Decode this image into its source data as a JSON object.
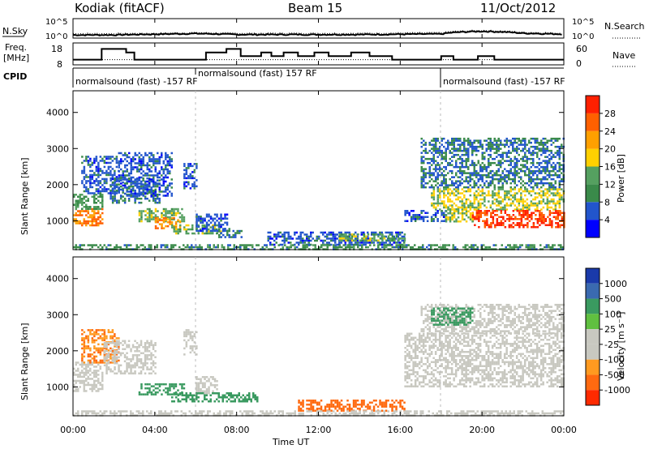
{
  "header": {
    "station": "Kodiak (fitACF)",
    "beam": "Beam 15",
    "date": "11/Oct/2012"
  },
  "noise_panel": {
    "left_label": "N.Sky",
    "right_label": "N.Search",
    "left_ticks": [
      "10^5",
      "10^0"
    ],
    "right_ticks": [
      "10^5",
      "10^0"
    ]
  },
  "freq_panel": {
    "left_label_1": "Freq.",
    "left_label_2": "[MHz]",
    "right_label": "Nave",
    "left_ticks": [
      "18",
      "8"
    ],
    "right_ticks": [
      "60",
      "0"
    ]
  },
  "cpid_panel": {
    "label": "CPID",
    "segments": [
      {
        "start_hour": 0,
        "text": "normalsound (fast) -157 RF"
      },
      {
        "start_hour": 6,
        "text": "normalsound (fast) 157 RF"
      },
      {
        "start_hour": 18,
        "text": "normalsound (fast) -157 RF"
      }
    ]
  },
  "x_axis": {
    "label": "Time UT",
    "ticks": [
      "00:00",
      "04:00",
      "08:00",
      "12:00",
      "16:00",
      "20:00",
      "00:00"
    ]
  },
  "power_panel": {
    "ylabel": "Slant Range [km]",
    "yticks": [
      "1000",
      "2000",
      "3000",
      "4000"
    ],
    "colorbar_label": "Power [dB]",
    "colorbar_ticks": [
      "4",
      "8",
      "12",
      "16",
      "20",
      "24",
      "28"
    ],
    "colors": [
      "#0000ff",
      "#2255cc",
      "#3a8a4a",
      "#55a060",
      "#ffd000",
      "#ffa000",
      "#ff6000",
      "#ff2000"
    ]
  },
  "velocity_panel": {
    "ylabel": "Slant Range [km]",
    "yticks": [
      "1000",
      "2000",
      "3000",
      "4000"
    ],
    "colorbar_label": "Velocity [m s⁻¹]",
    "colorbar_ticks": [
      "1000",
      "500",
      "100",
      "25",
      "-25",
      "-100",
      "-500",
      "-1000"
    ],
    "colors": [
      "#1a3aaa",
      "#3a6ab0",
      "#3a9a60",
      "#60c040",
      "#c8c8c0",
      "#c8c8c0",
      "#ff9a20",
      "#ff6a10",
      "#ff2a00"
    ]
  },
  "chart_data": [
    {
      "type": "line",
      "title": "",
      "x": [
        0,
        2,
        4,
        6,
        8,
        10,
        12,
        14,
        16,
        18,
        20,
        22,
        24
      ],
      "series": [
        {
          "name": "N.Sky",
          "values": [
            3,
            3,
            5,
            8,
            4,
            4,
            4,
            4,
            5,
            6,
            40,
            10,
            5
          ]
        },
        {
          "name": "N.Search",
          "values": [
            8,
            8,
            10,
            15,
            10,
            10,
            10,
            10,
            12,
            15,
            80,
            20,
            10
          ]
        }
      ],
      "xlabel": "",
      "ylabel": "",
      "ylim": [
        1,
        100000
      ]
    },
    {
      "type": "line",
      "title": "",
      "x": [
        0,
        1.4,
        1.4,
        2.6,
        2.6,
        3.0,
        3.0,
        6.5,
        6.5,
        7.5,
        7.5,
        8.2,
        8.2,
        9.2,
        9.2,
        9.7,
        9.7,
        10.3,
        10.3,
        11.0,
        11.0,
        11.8,
        11.8,
        12.5,
        12.5,
        13.6,
        13.6,
        14.5,
        14.5,
        15.6,
        15.6,
        18.0,
        18.0,
        18.6,
        18.6,
        19.8,
        19.8,
        20.6,
        20.6,
        24
      ],
      "series": [
        {
          "name": "Freq.",
          "values": [
            10,
            10,
            16,
            16,
            14,
            14,
            10,
            10,
            14,
            14,
            16,
            16,
            12,
            12,
            14,
            14,
            12,
            12,
            14,
            14,
            12,
            12,
            14,
            14,
            12,
            12,
            14,
            14,
            12,
            12,
            10,
            10,
            12,
            12,
            10,
            10,
            12,
            12,
            10,
            10
          ]
        },
        {
          "name": "Nave",
          "values": [
            10,
            10,
            10,
            10,
            10,
            10,
            10,
            10,
            10,
            10,
            10,
            10,
            10,
            10,
            10,
            10,
            10,
            10,
            10,
            10,
            10,
            10,
            10,
            10,
            10,
            10,
            10,
            10,
            10,
            10,
            10,
            10,
            10,
            10,
            10,
            10,
            10,
            10,
            10,
            10
          ]
        }
      ],
      "xlabel": "",
      "ylabel": "",
      "ylim": [
        8,
        18
      ]
    },
    {
      "type": "heatmap",
      "title": "",
      "xlabel": "Time UT",
      "ylabel": "Slant Range [km]",
      "xlim": [
        0,
        24
      ],
      "ylim": [
        200,
        4600
      ],
      "colorbar": "Power [dB]",
      "regions": [
        {
          "t0": 0.0,
          "t1": 1.4,
          "r0": 900,
          "r1": 1350,
          "value": 24
        },
        {
          "t0": 0.0,
          "t1": 1.4,
          "r0": 1350,
          "r1": 1750,
          "value": 12
        },
        {
          "t0": 0.4,
          "t1": 2.2,
          "r0": 1750,
          "r1": 2800,
          "value": 6
        },
        {
          "t0": 1.8,
          "t1": 4.2,
          "r0": 1500,
          "r1": 2200,
          "value": 8
        },
        {
          "t0": 2.2,
          "t1": 4.8,
          "r0": 1700,
          "r1": 2900,
          "value": 6
        },
        {
          "t0": 3.2,
          "t1": 5.4,
          "r0": 1000,
          "r1": 1350,
          "value": 14
        },
        {
          "t0": 4.0,
          "t1": 5.2,
          "r0": 800,
          "r1": 1100,
          "value": 24
        },
        {
          "t0": 4.8,
          "t1": 7.2,
          "r0": 650,
          "r1": 900,
          "value": 14
        },
        {
          "t0": 5.4,
          "t1": 6.0,
          "r0": 1900,
          "r1": 2600,
          "value": 6
        },
        {
          "t0": 6.0,
          "t1": 7.5,
          "r0": 700,
          "r1": 1200,
          "value": 6
        },
        {
          "t0": 7.0,
          "t1": 8.2,
          "r0": 550,
          "r1": 800,
          "value": 8
        },
        {
          "t0": 9.5,
          "t1": 16.2,
          "r0": 350,
          "r1": 700,
          "value": 6
        },
        {
          "t0": 13.0,
          "t1": 16.2,
          "r0": 450,
          "r1": 650,
          "value": 14
        },
        {
          "t0": 16.2,
          "t1": 18.2,
          "r0": 1000,
          "r1": 1300,
          "value": 6
        },
        {
          "t0": 17.5,
          "t1": 24.0,
          "r0": 1300,
          "r1": 1900,
          "value": 16
        },
        {
          "t0": 17.0,
          "t1": 24.0,
          "r0": 1900,
          "r1": 3300,
          "value": 8
        },
        {
          "t0": 19.5,
          "t1": 24.0,
          "r0": 800,
          "r1": 1300,
          "value": 28
        },
        {
          "t0": 18.2,
          "t1": 19.5,
          "r0": 1000,
          "r1": 1400,
          "value": 16
        },
        {
          "t0": 0.0,
          "t1": 24.0,
          "r0": 200,
          "r1": 350,
          "value": 10
        }
      ]
    },
    {
      "type": "heatmap",
      "title": "",
      "xlabel": "Time UT",
      "ylabel": "Slant Range [km]",
      "xlim": [
        0,
        24
      ],
      "ylim": [
        200,
        4600
      ],
      "colorbar": "Velocity [m s⁻¹]",
      "regions": [
        {
          "t0": 0.0,
          "t1": 1.4,
          "r0": 900,
          "r1": 1700,
          "value": 0
        },
        {
          "t0": 0.4,
          "t1": 2.2,
          "r0": 1700,
          "r1": 2600,
          "value": -100
        },
        {
          "t0": 1.5,
          "t1": 4.0,
          "r0": 1400,
          "r1": 2300,
          "value": 0
        },
        {
          "t0": 3.2,
          "t1": 5.4,
          "r0": 800,
          "r1": 1100,
          "value": 200
        },
        {
          "t0": 4.8,
          "t1": 9.0,
          "r0": 600,
          "r1": 850,
          "value": 200
        },
        {
          "t0": 5.4,
          "t1": 6.0,
          "r0": 1900,
          "r1": 2600,
          "value": 0
        },
        {
          "t0": 6.0,
          "t1": 7.0,
          "r0": 800,
          "r1": 1300,
          "value": 0
        },
        {
          "t0": 11.0,
          "t1": 16.2,
          "r0": 350,
          "r1": 650,
          "value": -300
        },
        {
          "t0": 16.2,
          "t1": 24.0,
          "r0": 1000,
          "r1": 2500,
          "value": 0
        },
        {
          "t0": 17.0,
          "t1": 24.0,
          "r0": 2500,
          "r1": 3300,
          "value": 0
        },
        {
          "t0": 17.5,
          "t1": 19.5,
          "r0": 2700,
          "r1": 3200,
          "value": 200
        },
        {
          "t0": 0.0,
          "t1": 24.0,
          "r0": 200,
          "r1": 350,
          "value": 0
        }
      ]
    }
  ]
}
